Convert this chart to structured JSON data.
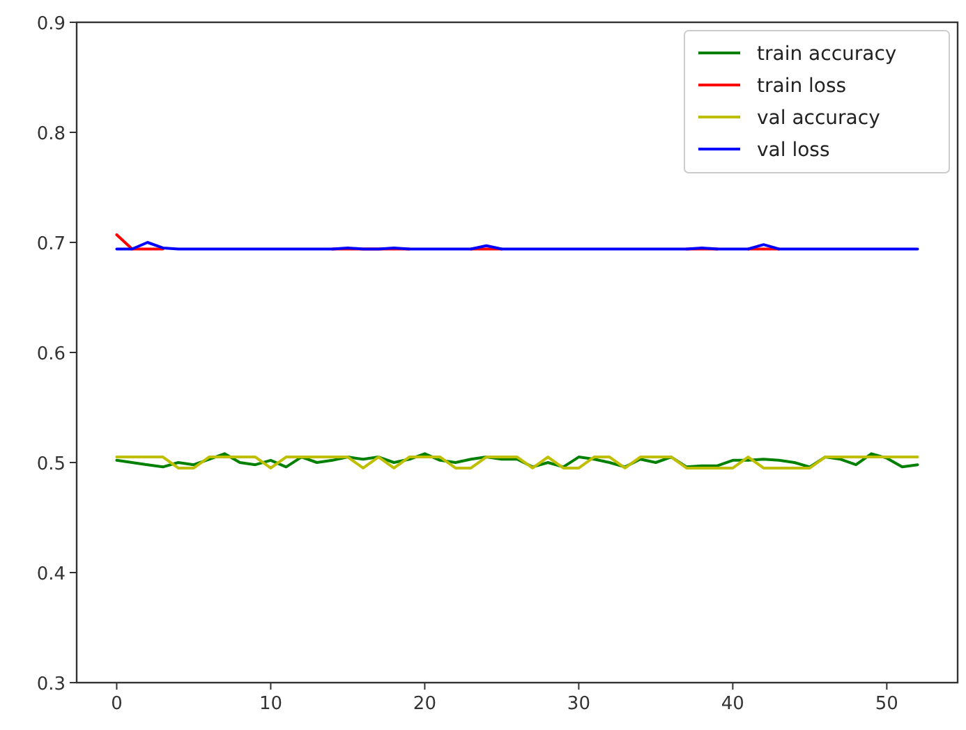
{
  "chart_data": {
    "type": "line",
    "x": [
      0,
      1,
      2,
      3,
      4,
      5,
      6,
      7,
      8,
      9,
      10,
      11,
      12,
      13,
      14,
      15,
      16,
      17,
      18,
      19,
      20,
      21,
      22,
      23,
      24,
      25,
      26,
      27,
      28,
      29,
      30,
      31,
      32,
      33,
      34,
      35,
      36,
      37,
      38,
      39,
      40,
      41,
      42,
      43,
      44,
      45,
      46,
      47,
      48,
      49,
      50,
      51,
      52
    ],
    "xlim": [
      -2.6,
      54.6
    ],
    "xticks": [
      0,
      10,
      20,
      30,
      40,
      50
    ],
    "ylim": [
      0.3,
      0.9
    ],
    "yticks": [
      0.3,
      0.4,
      0.5,
      0.6,
      0.7,
      0.8,
      0.9
    ],
    "legend": "top right",
    "grid": false,
    "series": [
      {
        "name": "train accuracy",
        "color": "#008000",
        "values": [
          0.502,
          0.5,
          0.498,
          0.496,
          0.5,
          0.498,
          0.503,
          0.508,
          0.5,
          0.498,
          0.502,
          0.496,
          0.505,
          0.5,
          0.502,
          0.505,
          0.503,
          0.505,
          0.5,
          0.503,
          0.508,
          0.502,
          0.5,
          0.503,
          0.505,
          0.503,
          0.503,
          0.496,
          0.5,
          0.496,
          0.505,
          0.503,
          0.5,
          0.496,
          0.503,
          0.5,
          0.505,
          0.496,
          0.497,
          0.497,
          0.502,
          0.502,
          0.503,
          0.502,
          0.5,
          0.496,
          0.505,
          0.503,
          0.498,
          0.508,
          0.504,
          0.496,
          0.498
        ]
      },
      {
        "name": "train loss",
        "color": "#ff0000",
        "values": [
          0.707,
          0.694,
          0.694,
          0.694,
          null,
          null,
          null,
          null,
          null,
          null,
          null,
          null,
          null,
          null,
          0.694,
          0.694,
          0.694,
          0.694,
          0.694,
          0.694,
          null,
          null,
          null,
          0.694,
          0.694,
          0.694,
          null,
          null,
          null,
          null,
          null,
          null,
          null,
          null,
          null,
          null,
          null,
          0.694,
          0.694,
          0.694,
          null,
          0.694,
          0.694,
          0.694,
          null,
          null,
          null,
          null,
          null,
          null,
          null,
          null,
          null
        ]
      },
      {
        "name": "val accuracy",
        "color": "#bfbf00",
        "values": [
          0.505,
          0.505,
          0.505,
          0.505,
          0.495,
          0.495,
          0.505,
          0.505,
          0.505,
          0.505,
          0.495,
          0.505,
          0.505,
          0.505,
          0.505,
          0.505,
          0.495,
          0.505,
          0.495,
          0.505,
          0.505,
          0.505,
          0.495,
          0.495,
          0.505,
          0.505,
          0.505,
          0.495,
          0.505,
          0.495,
          0.495,
          0.505,
          0.505,
          0.495,
          0.505,
          0.505,
          0.505,
          0.495,
          0.495,
          0.495,
          0.495,
          0.505,
          0.495,
          0.495,
          0.495,
          0.495,
          0.505,
          0.505,
          0.505,
          0.505,
          0.505,
          0.505,
          0.505
        ]
      },
      {
        "name": "val loss",
        "color": "#0000ff",
        "values": [
          0.694,
          0.694,
          0.7,
          0.695,
          0.694,
          0.694,
          0.694,
          0.694,
          0.694,
          0.694,
          0.694,
          0.694,
          0.694,
          0.694,
          0.694,
          0.695,
          0.694,
          0.694,
          0.695,
          0.694,
          0.694,
          0.694,
          0.694,
          0.694,
          0.697,
          0.694,
          0.694,
          0.694,
          0.694,
          0.694,
          0.694,
          0.694,
          0.694,
          0.694,
          0.694,
          0.694,
          0.694,
          0.694,
          0.695,
          0.694,
          0.694,
          0.694,
          0.698,
          0.694,
          0.694,
          0.694,
          0.694,
          0.694,
          0.694,
          0.694,
          0.694,
          0.694,
          0.694
        ]
      }
    ]
  }
}
